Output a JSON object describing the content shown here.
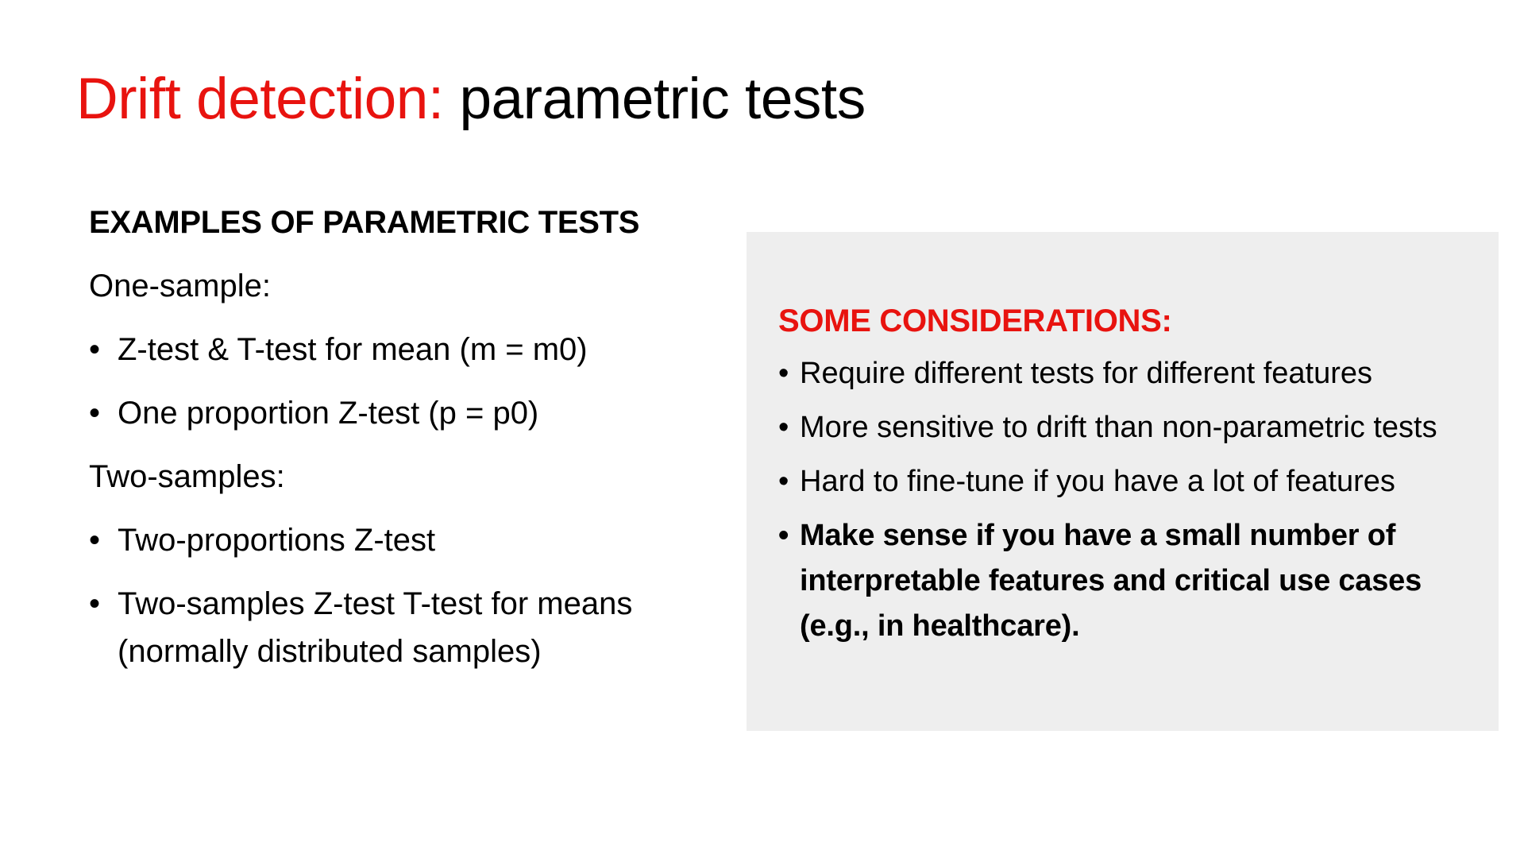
{
  "title": {
    "accent": "Drift detection:",
    "rest": " parametric tests"
  },
  "examples": {
    "heading": "EXAMPLES OF PARAMETRIC TESTS",
    "one_sample": {
      "label": "One-sample:",
      "items": [
        "Z-test & T-test for mean (m = m0)",
        "One proportion Z-test (p = p0)"
      ]
    },
    "two_samples": {
      "label": "Two-samples:",
      "items": [
        "Two-proportions Z-test",
        "Two-samples Z-test T-test for means (normally distributed samples)"
      ]
    }
  },
  "considerations": {
    "heading": "SOME CONSIDERATIONS:",
    "items": [
      "Require different tests for different features",
      "More sensitive to drift than non-parametric tests",
      "Hard to fine-tune if you have a lot of features",
      "Make sense if you have a small number of interpretable features and critical use cases (e.g., in healthcare)."
    ]
  },
  "bullet_glyph": "•",
  "colors": {
    "accent": "#e8130f",
    "text": "#000000",
    "panel_background": "#eeeeee",
    "page_background": "#ffffff"
  }
}
